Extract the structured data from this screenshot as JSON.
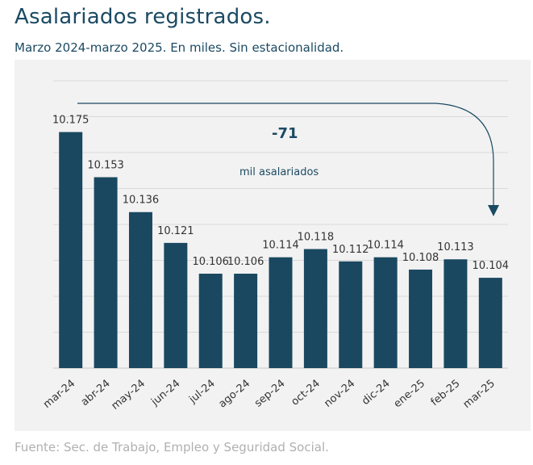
{
  "title": "Asalariados registrados.",
  "subtitle": "Marzo 2024-marzo 2025. En miles. Sin estacionalidad.",
  "source": "Fuente: Sec. de Trabajo, Empleo y Seguridad Social.",
  "annotation": {
    "value": "-71",
    "text": "mil asalariados"
  },
  "colors": {
    "bar": "#1a4860",
    "grid": "#d9d9d9",
    "panel": "#f2f2f2",
    "arrow": "#1b4a63"
  },
  "chart_data": {
    "type": "bar",
    "categories": [
      "mar-24",
      "abr-24",
      "may-24",
      "jun-24",
      "jul-24",
      "ago-24",
      "sep-24",
      "oct-24",
      "nov-24",
      "dic-24",
      "ene-25",
      "feb-25",
      "mar-25"
    ],
    "values": [
      10175,
      10153,
      10136,
      10121,
      10106,
      10106,
      10114,
      10118,
      10112,
      10114,
      10108,
      10113,
      10104
    ],
    "data_labels": [
      "10.175",
      "10.153",
      "10.136",
      "10.121",
      "10.106",
      "10.106",
      "10.114",
      "10.118",
      "10.112",
      "10.114",
      "10.108",
      "10.113",
      "10.104"
    ],
    "ylim": [
      10060,
      10200
    ],
    "grid": true
  }
}
